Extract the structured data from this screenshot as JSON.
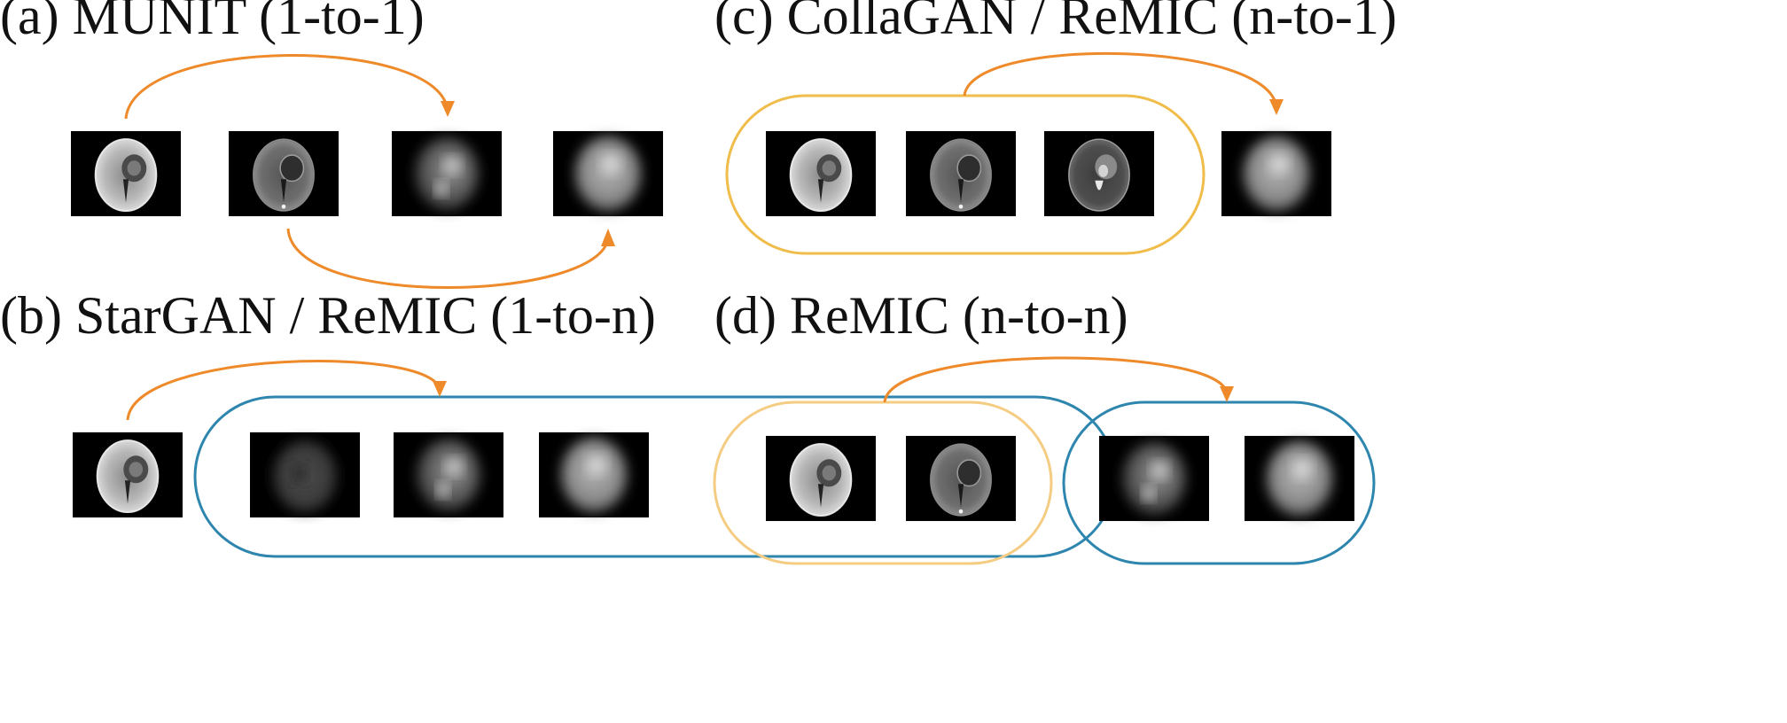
{
  "colors": {
    "arrow": "#EE8A2A",
    "orange_group": "#F0BC4A",
    "d_orange_group": "#F4CC82",
    "blue_group": "#2E86AF",
    "background": "#FFFFFF"
  },
  "panels": {
    "a": {
      "title": "(a) MUNIT (1-to-1)"
    },
    "b": {
      "title": "(b) StarGAN / ReMIC (1-to-n)"
    },
    "c": {
      "title": "(c) CollaGAN / ReMIC (n-to-1)"
    },
    "d": {
      "title": "(d) ReMIC (n-to-n)"
    }
  },
  "thumbnail_types": [
    "sharp-t1",
    "sharp-t1ce",
    "sharp-t2",
    "blurred-synthesis"
  ]
}
